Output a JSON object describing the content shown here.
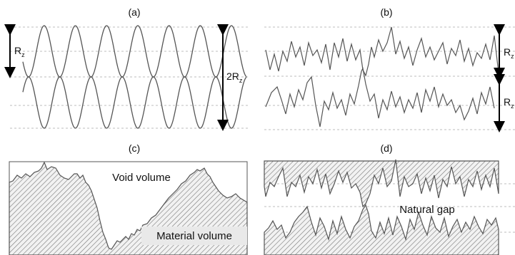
{
  "panels": {
    "a": {
      "label": "(a)",
      "rz_label": "R",
      "rz_sub": "z",
      "two_rz_label": "2R",
      "two_rz_sub": "z"
    },
    "b": {
      "label": "(b)",
      "rz_label": "R",
      "rz_sub": "z"
    },
    "c": {
      "label": "(c)",
      "void_label": "Void volume",
      "material_label": "Material volume"
    },
    "d": {
      "label": "(d)",
      "gap_label": "Natural gap"
    }
  },
  "colors": {
    "line": "#555555",
    "dash": "#bdbdbd",
    "hatch": "#777777",
    "arrow": "#000000"
  }
}
